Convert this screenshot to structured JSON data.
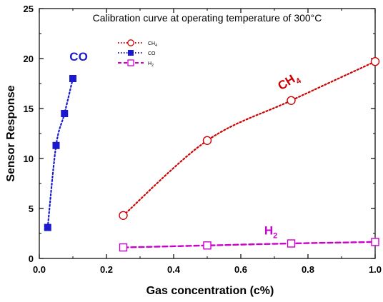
{
  "chart_data": {
    "type": "scatter",
    "title": "Calibration curve at operating temperature of 300°C",
    "xlabel": "Gas concentration (c%)",
    "ylabel": "Sensor Response",
    "xlim": [
      0.0,
      1.0
    ],
    "ylim": [
      0,
      25
    ],
    "xticks": [
      0.0,
      0.2,
      0.4,
      0.6,
      0.8,
      1.0
    ],
    "xtick_labels": [
      "0.0",
      "0.2",
      "0.4",
      "0.6",
      "0.8",
      "1.0"
    ],
    "yticks": [
      0,
      5,
      10,
      15,
      20,
      25
    ],
    "ytick_labels": [
      "0",
      "5",
      "10",
      "15",
      "20",
      "25"
    ],
    "grid": false,
    "legend_position": "top-left",
    "series": [
      {
        "name": "CH4",
        "label": "CH",
        "subscript": "4",
        "color": "#cc0000",
        "marker": "open-circle",
        "line": "dotted",
        "x": [
          0.25,
          0.5,
          0.75,
          1.0
        ],
        "y": [
          4.3,
          11.8,
          15.8,
          19.7
        ]
      },
      {
        "name": "CO",
        "label": "CO",
        "subscript": "",
        "color": "#1a1acc",
        "marker": "filled-square",
        "line": "dotted",
        "x": [
          0.025,
          0.05,
          0.075,
          0.1
        ],
        "y": [
          3.1,
          11.3,
          14.5,
          18.0
        ]
      },
      {
        "name": "H2",
        "label": "H",
        "subscript": "2",
        "color": "#cc00cc",
        "marker": "open-square",
        "line": "dashed",
        "x": [
          0.25,
          0.5,
          0.75,
          1.0
        ],
        "y": [
          1.1,
          1.3,
          1.5,
          1.65
        ]
      }
    ],
    "annotations": [
      {
        "series": "CO",
        "text": "CO",
        "sub": "",
        "x": 0.09,
        "y": 19.8,
        "rotate": 0
      },
      {
        "series": "CH4",
        "text": "CH",
        "sub": "4",
        "x": 0.72,
        "y": 16.8,
        "rotate": -32
      },
      {
        "series": "H2",
        "text": "H",
        "sub": "2",
        "x": 0.67,
        "y": 2.4,
        "rotate": 0
      }
    ]
  }
}
